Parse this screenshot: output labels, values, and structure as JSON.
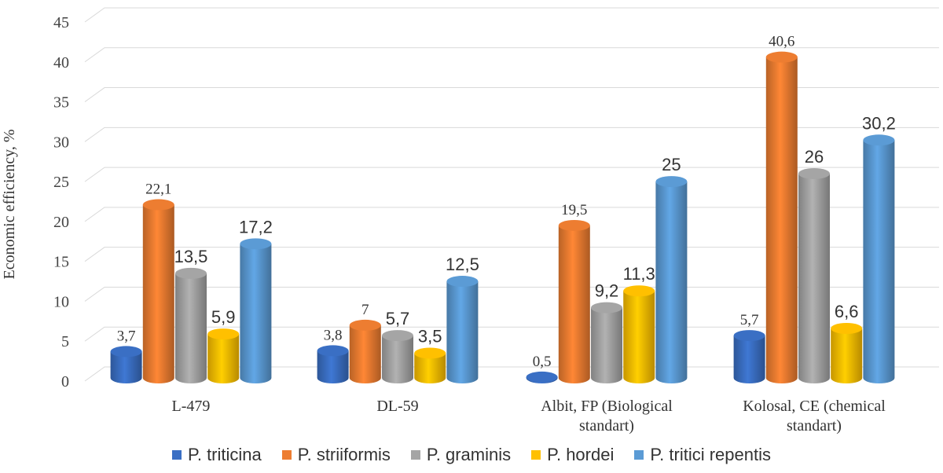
{
  "chart_data": {
    "type": "bar",
    "ylabel": "Economic efficiency, %",
    "ylim": [
      0,
      45
    ],
    "yticks": [
      0,
      5,
      10,
      15,
      20,
      25,
      30,
      35,
      40,
      45
    ],
    "grid": true,
    "legend_position": "bottom",
    "categories": [
      "L-479",
      "DL-59",
      "Albit, FP (Biological standart)",
      "Kolosal, CE (chemical standart)"
    ],
    "series": [
      {
        "name": "P. triticina",
        "color": "#3a6fc4",
        "values": [
          3.7,
          3.8,
          0.5,
          5.7
        ],
        "labels": [
          "3,7",
          "3,8",
          "0,5",
          "5,7"
        ]
      },
      {
        "name": "P. striiformis",
        "color": "#ed7d31",
        "values": [
          22.1,
          7,
          19.5,
          40.6
        ],
        "labels": [
          "22,1",
          "7",
          "19,5",
          "40,6"
        ]
      },
      {
        "name": "P. graminis",
        "color": "#a5a5a5",
        "values": [
          13.5,
          5.7,
          9.2,
          26
        ],
        "labels": [
          "13,5",
          "5,7",
          "9,2",
          "26"
        ]
      },
      {
        "name": "P. hordei",
        "color": "#ffc000",
        "values": [
          5.9,
          3.5,
          11.3,
          6.6
        ],
        "labels": [
          "5,9",
          "3,5",
          "11,3",
          "6,6"
        ]
      },
      {
        "name": "P. tritici repentis",
        "color": "#5b9bd5",
        "values": [
          17.2,
          12.5,
          25,
          30.2
        ],
        "labels": [
          "17,2",
          "12,5",
          "25",
          "30,2"
        ]
      }
    ]
  }
}
